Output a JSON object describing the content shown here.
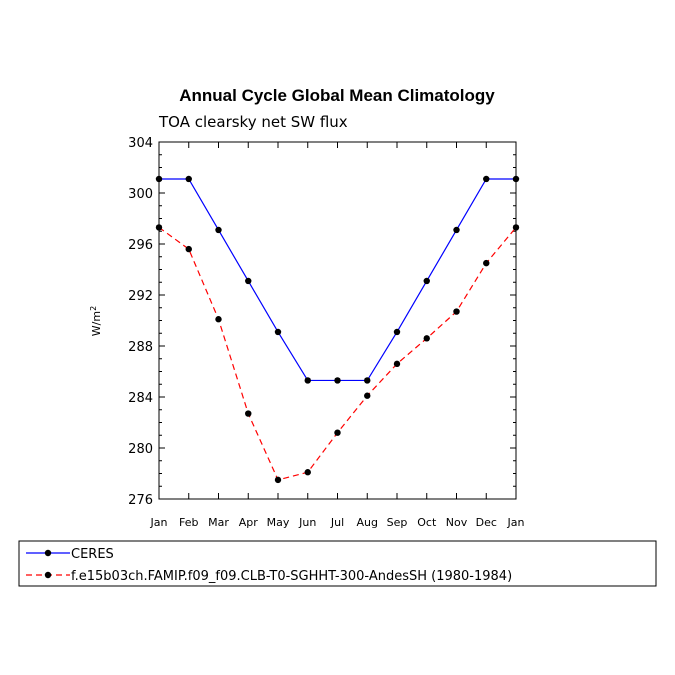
{
  "chart_data": {
    "type": "line",
    "title": "Annual Cycle Global Mean Climatology",
    "subtitle": "TOA clearsky net SW flux",
    "xlabel": "",
    "ylabel": "W/m",
    "ylabel_superscript": "2",
    "categories": [
      "Jan",
      "Feb",
      "Mar",
      "Apr",
      "May",
      "Jun",
      "Jul",
      "Aug",
      "Sep",
      "Oct",
      "Nov",
      "Dec",
      "Jan"
    ],
    "ylim": [
      276,
      304
    ],
    "yticks": [
      276,
      280,
      284,
      288,
      292,
      296,
      300,
      304
    ],
    "series": [
      {
        "name": "CERES",
        "color": "#0000ff",
        "dash": "solid",
        "values": [
          301.1,
          301.1,
          297.1,
          293.1,
          289.1,
          285.3,
          285.3,
          285.3,
          289.1,
          293.1,
          297.1,
          301.1,
          301.1
        ]
      },
      {
        "name": "f.e15b03ch.FAMIP.f09_f09.CLB-T0-SGHHT-300-AndesSH (1980-1984)",
        "color": "#ff0000",
        "dash": "dashed",
        "values": [
          297.3,
          295.6,
          290.1,
          282.7,
          277.5,
          278.1,
          281.2,
          284.1,
          286.6,
          288.6,
          290.7,
          294.5,
          297.3
        ]
      }
    ]
  }
}
